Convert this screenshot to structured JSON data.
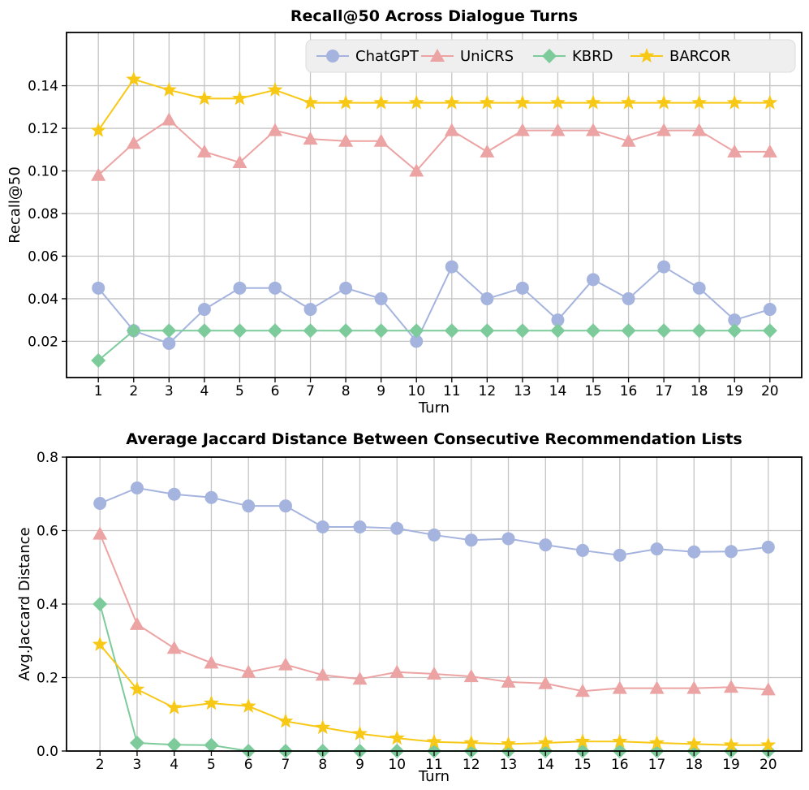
{
  "chart_data": [
    {
      "type": "line",
      "title": "Recall@50 Across Dialogue Turns",
      "xlabel": "Turn",
      "ylabel": "Recall@50",
      "x": [
        1,
        2,
        3,
        4,
        5,
        6,
        7,
        8,
        9,
        10,
        11,
        12,
        13,
        14,
        15,
        16,
        17,
        18,
        19,
        20
      ],
      "ylim": [
        0.003,
        0.165
      ],
      "yticks": [
        0.02,
        0.04,
        0.06,
        0.08,
        0.1,
        0.12,
        0.14
      ],
      "ytick_labels": [
        "0.02",
        "0.04",
        "0.06",
        "0.08",
        "0.10",
        "0.12",
        "0.14"
      ],
      "grid": true,
      "legend": {
        "placement": "top-right",
        "layout": "horizontal"
      },
      "series": [
        {
          "name": "ChatGPT",
          "color": "#a5b4de",
          "marker": "circle",
          "values": [
            0.045,
            0.025,
            0.019,
            0.035,
            0.045,
            0.045,
            0.035,
            0.045,
            0.04,
            0.02,
            0.055,
            0.04,
            0.045,
            0.03,
            0.049,
            0.04,
            0.055,
            0.045,
            0.03,
            0.035
          ]
        },
        {
          "name": "UniCRS",
          "color": "#eca3a3",
          "marker": "triangle",
          "values": [
            0.098,
            0.113,
            0.124,
            0.109,
            0.104,
            0.119,
            0.115,
            0.114,
            0.114,
            0.1,
            0.119,
            0.109,
            0.119,
            0.119,
            0.119,
            0.114,
            0.119,
            0.119,
            0.109,
            0.109
          ]
        },
        {
          "name": "KBRD",
          "color": "#7dcb9b",
          "marker": "diamond",
          "values": [
            0.011,
            0.025,
            0.025,
            0.025,
            0.025,
            0.025,
            0.025,
            0.025,
            0.025,
            0.025,
            0.025,
            0.025,
            0.025,
            0.025,
            0.025,
            0.025,
            0.025,
            0.025,
            0.025,
            0.025
          ]
        },
        {
          "name": "BARCOR",
          "color": "#f7c815",
          "marker": "star",
          "values": [
            0.119,
            0.143,
            0.138,
            0.134,
            0.134,
            0.138,
            0.132,
            0.132,
            0.132,
            0.132,
            0.132,
            0.132,
            0.132,
            0.132,
            0.132,
            0.132,
            0.132,
            0.132,
            0.132,
            0.132
          ]
        }
      ]
    },
    {
      "type": "line",
      "title": "Average Jaccard Distance Between Consecutive Recommendation Lists",
      "xlabel": "Turn",
      "ylabel": "Avg.Jaccard Distance",
      "x": [
        2,
        3,
        4,
        5,
        6,
        7,
        8,
        9,
        10,
        11,
        12,
        13,
        14,
        15,
        16,
        17,
        18,
        19,
        20
      ],
      "ylim": [
        0.0,
        0.8
      ],
      "yticks": [
        0.0,
        0.2,
        0.4,
        0.6,
        0.8
      ],
      "ytick_labels": [
        "0.0",
        "0.2",
        "0.4",
        "0.6",
        "0.8"
      ],
      "grid": true,
      "series": [
        {
          "name": "ChatGPT",
          "color": "#a5b4de",
          "marker": "circle",
          "values": [
            0.674,
            0.716,
            0.699,
            0.69,
            0.667,
            0.667,
            0.61,
            0.61,
            0.606,
            0.588,
            0.574,
            0.578,
            0.561,
            0.546,
            0.533,
            0.55,
            0.542,
            0.543,
            0.555
          ]
        },
        {
          "name": "UniCRS",
          "color": "#eca3a3",
          "marker": "triangle",
          "values": [
            0.591,
            0.345,
            0.28,
            0.24,
            0.215,
            0.235,
            0.207,
            0.196,
            0.215,
            0.21,
            0.203,
            0.188,
            0.184,
            0.163,
            0.171,
            0.171,
            0.171,
            0.174,
            0.167
          ]
        },
        {
          "name": "KBRD",
          "color": "#7dcb9b",
          "marker": "diamond",
          "values": [
            0.4,
            0.022,
            0.017,
            0.016,
            0.0,
            0.0,
            0.0,
            0.0,
            0.0,
            0.0,
            0.0,
            0.0,
            0.0,
            0.0,
            0.0,
            0.0,
            0.0,
            0.0,
            0.0
          ]
        },
        {
          "name": "BARCOR",
          "color": "#f7c815",
          "marker": "star",
          "values": [
            0.29,
            0.168,
            0.118,
            0.13,
            0.122,
            0.081,
            0.064,
            0.047,
            0.035,
            0.025,
            0.022,
            0.019,
            0.022,
            0.026,
            0.026,
            0.022,
            0.019,
            0.016,
            0.016
          ]
        }
      ]
    }
  ]
}
